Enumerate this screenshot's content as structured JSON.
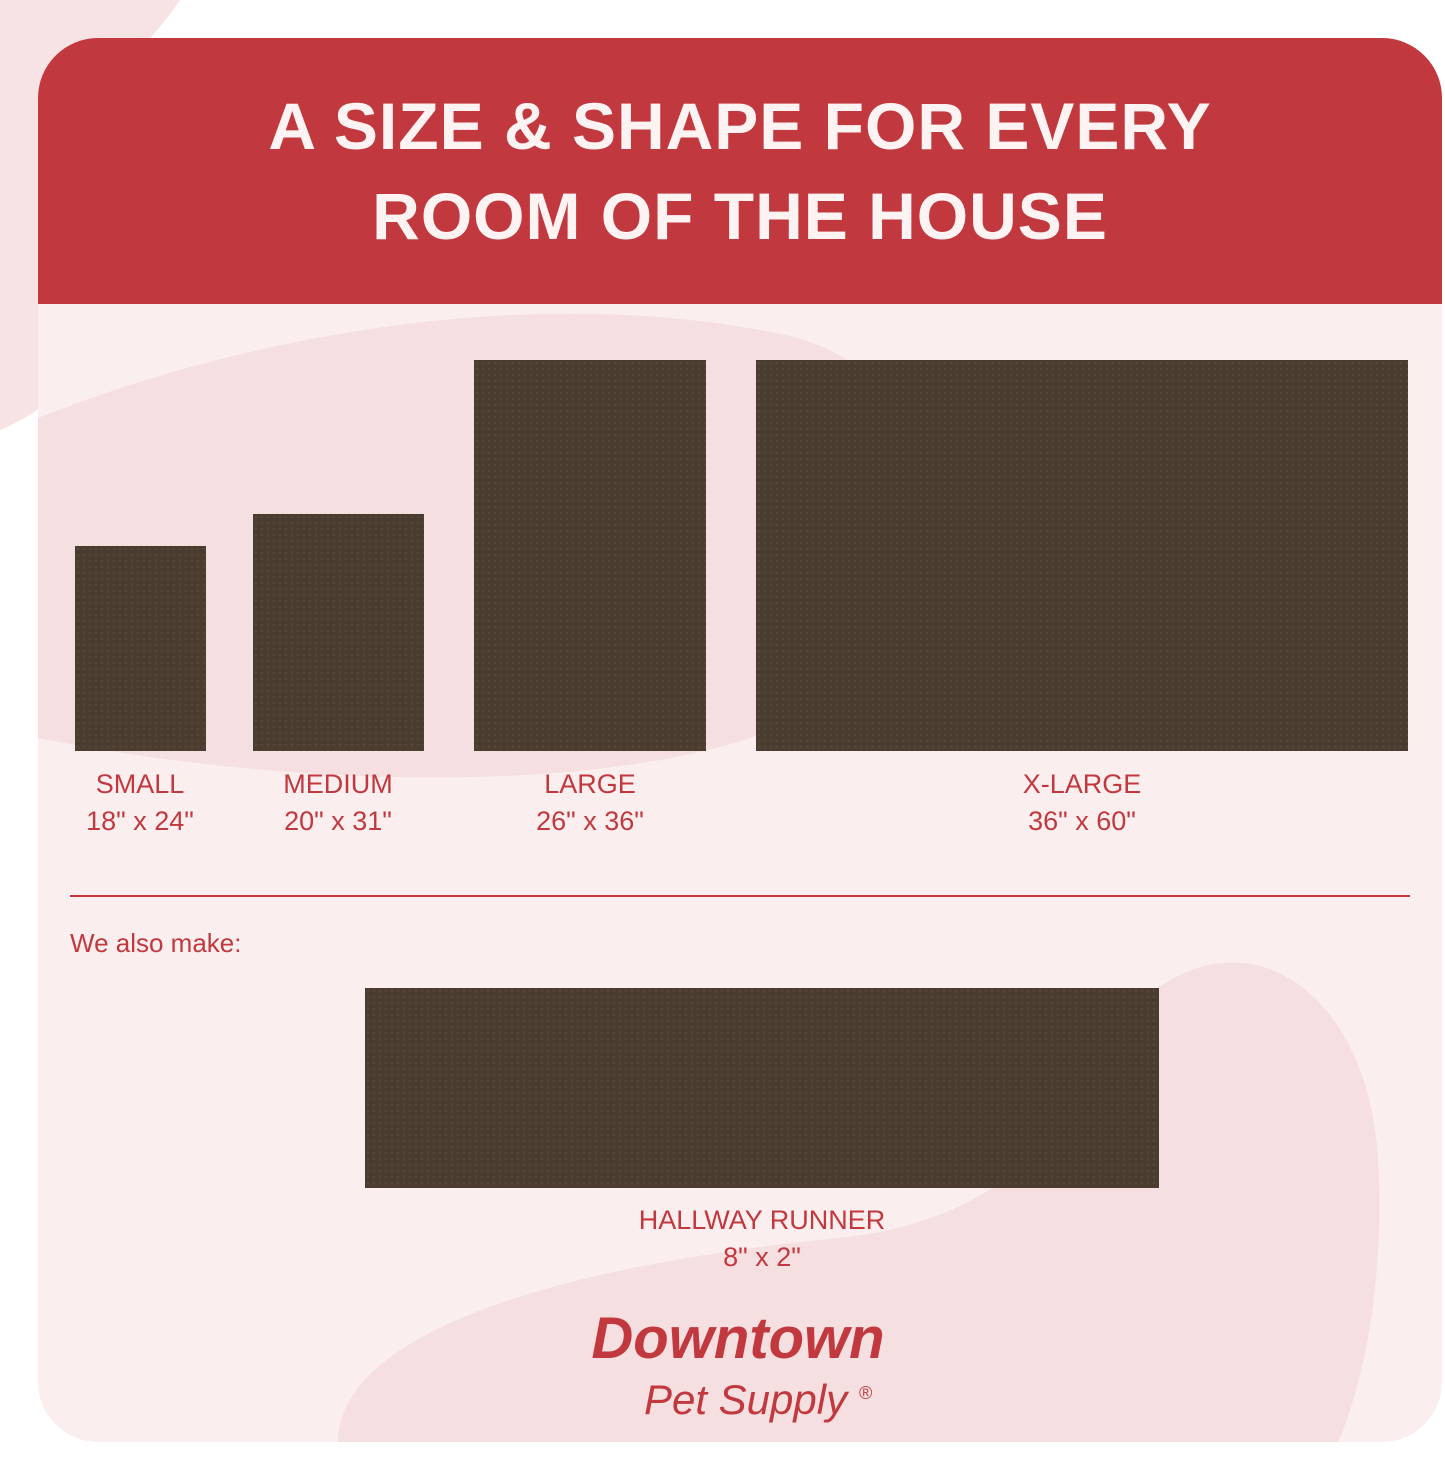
{
  "header": {
    "line1": "A SIZE & SHAPE FOR EVERY",
    "line2": "ROOM OF THE HOUSE"
  },
  "sizes": [
    {
      "name": "SMALL",
      "dims": "18\" x 24\""
    },
    {
      "name": "MEDIUM",
      "dims": "20\" x 31\""
    },
    {
      "name": "LARGE",
      "dims": "26\" x 36\""
    },
    {
      "name": "X-LARGE",
      "dims": "36\" x 60\""
    }
  ],
  "also_make": "We also make:",
  "runner": {
    "name": "HALLWAY RUNNER",
    "dims": "8\" x 2\""
  },
  "logo": {
    "line1": "Downtown",
    "line2": "Pet Supply",
    "mark": "®"
  },
  "colors": {
    "brand_red": "#c1393f",
    "mat": "#4a3d30",
    "background": "#fbeeee"
  }
}
